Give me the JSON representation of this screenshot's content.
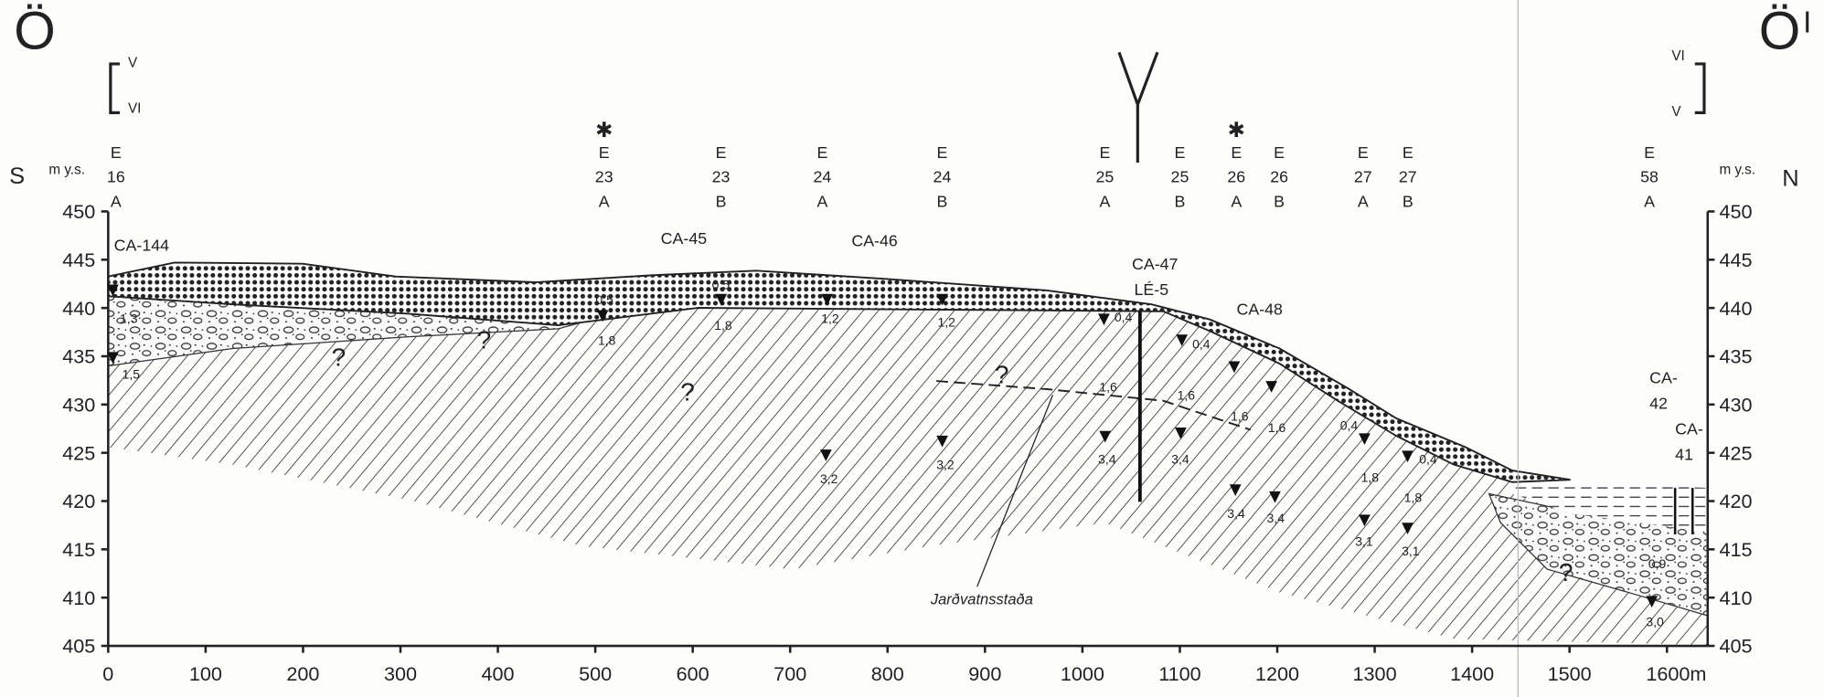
{
  "corners": {
    "left": "Ö",
    "right": "Ö",
    "right_mark": "I"
  },
  "section_refs": {
    "left_top": "V",
    "left_bottom": "VI",
    "right_top": "VI",
    "right_bottom": "V"
  },
  "directions": {
    "left": "S",
    "right": "N"
  },
  "axis": {
    "unit_left": "m y.s.",
    "unit_right": "m y.s.",
    "ylim": [
      405,
      450
    ],
    "yticks": [
      405,
      410,
      415,
      420,
      425,
      430,
      435,
      440,
      445,
      450
    ],
    "xlim": [
      0,
      1600
    ],
    "xticks": [
      0,
      100,
      200,
      300,
      400,
      500,
      600,
      700,
      800,
      900,
      1000,
      1100,
      1200,
      1300,
      1400,
      1500,
      {
        "value": 1600,
        "label": "1600m"
      }
    ]
  },
  "boreholes": [
    {
      "rows": [
        "E",
        "16",
        "A"
      ],
      "x": 8
    },
    {
      "rows": [
        "E",
        "23",
        "A"
      ],
      "x": 509,
      "symbol": "✱"
    },
    {
      "rows": [
        "E",
        "23",
        "B"
      ],
      "x": 629
    },
    {
      "rows": [
        "E",
        "24",
        "A"
      ],
      "x": 733
    },
    {
      "rows": [
        "E",
        "24",
        "B"
      ],
      "x": 856
    },
    {
      "rows": [
        "E",
        "25",
        "A"
      ],
      "x": 1023
    },
    {
      "rows": [
        "E",
        "25",
        "B"
      ],
      "x": 1100
    },
    {
      "rows": [
        "E",
        "26",
        "A"
      ],
      "x": 1158,
      "symbol": "✱"
    },
    {
      "rows": [
        "E",
        "26",
        "B"
      ],
      "x": 1202
    },
    {
      "rows": [
        "E",
        "27",
        "A"
      ],
      "x": 1288
    },
    {
      "rows": [
        "E",
        "27",
        "B"
      ],
      "x": 1334
    },
    {
      "rows": [
        "E",
        "58",
        "A"
      ],
      "x": 1582
    }
  ],
  "profiles": [
    [
      "CA-144"
    ],
    [
      "CA-45"
    ],
    [
      "CA-46"
    ],
    [
      "CA-47",
      "LÉ-5"
    ],
    [
      "CA-48"
    ],
    [
      "CA-",
      "42"
    ],
    [
      "CA-",
      "41"
    ]
  ],
  "water_levels": [
    "1,3",
    "1,5",
    "0,5",
    "1,8",
    "0,5",
    "1,8",
    "1,2",
    "1,2",
    "0,4",
    "0,4",
    "1,6",
    "1,6",
    "1,6",
    "1,6",
    "0,4",
    "0,4",
    "1,8",
    "1,8",
    "3,2",
    "3,2",
    "3,4",
    "3,4",
    "3,4",
    "3,4",
    "3,1",
    "3,1",
    "0,9",
    "3,0"
  ],
  "annotation": "Jarðvatnsstaða",
  "uncertain": "?"
}
